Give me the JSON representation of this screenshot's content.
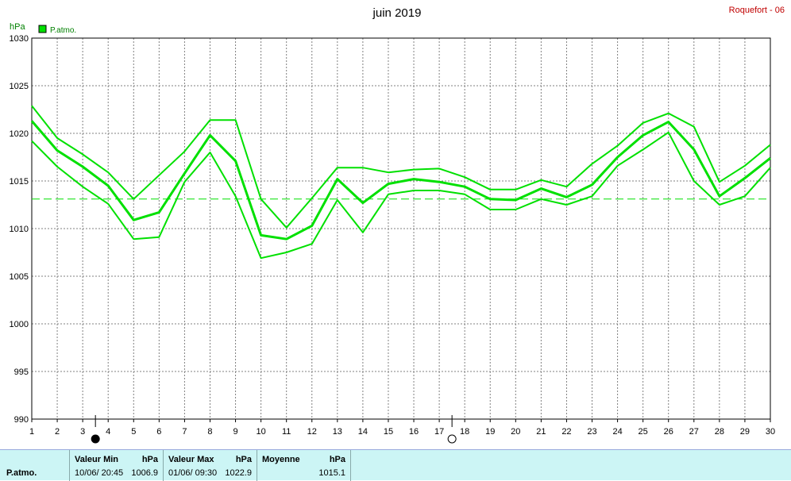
{
  "title": "juin 2019",
  "station": "Roquefort - 06",
  "unit": "hPa",
  "legend": {
    "label": "P.atmo.",
    "color": "#00e000"
  },
  "moon_phases": [
    {
      "day": 3.5,
      "phase": "new-moon"
    },
    {
      "day": 17.5,
      "phase": "full-moon"
    }
  ],
  "chart_data": {
    "type": "line",
    "x": [
      1,
      2,
      3,
      4,
      5,
      6,
      7,
      8,
      9,
      10,
      11,
      12,
      13,
      14,
      15,
      16,
      17,
      18,
      19,
      20,
      21,
      22,
      23,
      24,
      25,
      26,
      27,
      28,
      29,
      30
    ],
    "xlim": [
      1,
      30
    ],
    "ylim": [
      990,
      1030
    ],
    "yticks": [
      990,
      995,
      1000,
      1005,
      1010,
      1015,
      1020,
      1025,
      1030
    ],
    "ylabel": "hPa",
    "grid": true,
    "mean_line": 1013.1,
    "series": [
      {
        "name": "P.atmo.",
        "role": "max",
        "values": [
          1022.9,
          1019.5,
          1017.8,
          1015.9,
          1013.1,
          1015.6,
          1018.1,
          1021.4,
          1021.4,
          1013.1,
          1010.1,
          1013.2,
          1016.4,
          1016.4,
          1015.9,
          1016.2,
          1016.3,
          1015.4,
          1014.1,
          1014.1,
          1015.1,
          1014.4,
          1016.8,
          1018.7,
          1021.1,
          1022.1,
          1020.7,
          1014.9,
          1016.6,
          1018.8
        ]
      },
      {
        "name": "P.atmo.",
        "role": "mean",
        "values": [
          1021.3,
          1018.2,
          1016.5,
          1014.5,
          1010.9,
          1011.7,
          1015.8,
          1019.8,
          1017.1,
          1009.3,
          1008.9,
          1010.3,
          1015.2,
          1012.7,
          1014.7,
          1015.2,
          1014.9,
          1014.4,
          1013.1,
          1013.0,
          1014.2,
          1013.3,
          1014.6,
          1017.5,
          1019.8,
          1021.2,
          1018.3,
          1013.4,
          1015.3,
          1017.4
        ]
      },
      {
        "name": "P.atmo.",
        "role": "min",
        "values": [
          1019.2,
          1016.5,
          1014.4,
          1012.6,
          1008.9,
          1009.1,
          1014.9,
          1018.0,
          1013.4,
          1006.9,
          1007.5,
          1008.4,
          1013.0,
          1009.6,
          1013.6,
          1014.0,
          1014.0,
          1013.6,
          1012.0,
          1012.0,
          1013.1,
          1012.5,
          1013.4,
          1016.6,
          1018.3,
          1020.1,
          1015.0,
          1012.5,
          1013.4,
          1016.4
        ]
      }
    ]
  },
  "footer": {
    "param_label": "P.atmo.",
    "min_header": "Valeur Min",
    "min_unit": "hPa",
    "min_date": "10/06/  20:45",
    "min_value": "1006.9",
    "max_header": "Valeur Max",
    "max_unit": "hPa",
    "max_date": "01/06/  09:30",
    "max_value": "1022.9",
    "avg_header": "Moyenne",
    "avg_unit": "hPa",
    "avg_value": "1015.1"
  }
}
